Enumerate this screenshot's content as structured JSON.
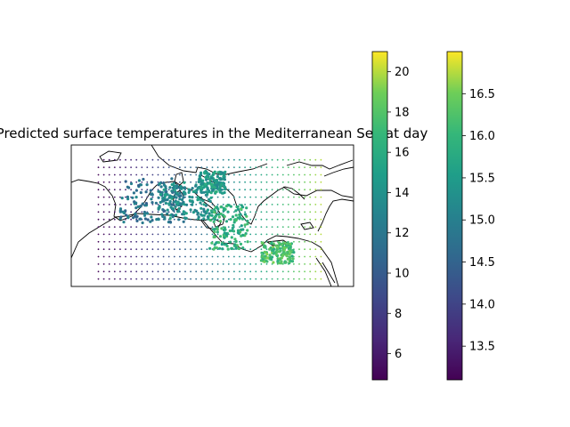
{
  "chart_data": {
    "type": "scatter",
    "title": "Predicted surface temperatures in the Mediterranean Sea at day",
    "xlabel": "",
    "ylabel": "",
    "map_region": "Mediterranean Sea",
    "colormap": "viridis",
    "colorbars": [
      {
        "name": "colorbar-1",
        "range": [
          4.7,
          21.0
        ],
        "ticks": [
          6,
          8,
          10,
          12,
          14,
          16,
          18,
          20
        ],
        "tick_labels": [
          "6",
          "8",
          "10",
          "12",
          "14",
          "16",
          "18",
          "20"
        ]
      },
      {
        "name": "colorbar-2",
        "range": [
          13.1,
          17.0
        ],
        "ticks": [
          13.5,
          14.0,
          14.5,
          15.0,
          15.5,
          16.0,
          16.5
        ],
        "tick_labels": [
          "13.5",
          "14.0",
          "14.5",
          "15.0",
          "15.5",
          "16.0",
          "16.5"
        ]
      }
    ],
    "grid_points": {
      "description": "regular grid of predicted values, coloured by colorbar-1",
      "lon_range": [
        -5,
        36
      ],
      "lat_range": [
        30,
        46
      ],
      "west_value": 5,
      "east_value": 20
    },
    "observations": {
      "description": "observation clusters over the sea, coloured by colorbar-2",
      "clusters": [
        {
          "region": "Balearic / Gulf of Lion",
          "lon": 5,
          "lat": 40.5,
          "value": 14.8
        },
        {
          "region": "Tyrrhenian",
          "lon": 11,
          "lat": 40.5,
          "value": 15.3
        },
        {
          "region": "Adriatic",
          "lon": 16,
          "lat": 43,
          "value": 15.5
        },
        {
          "region": "Ionian",
          "lon": 19,
          "lat": 37,
          "value": 15.9
        },
        {
          "region": "Levantine",
          "lon": 28,
          "lat": 33.5,
          "value": 16.2
        }
      ]
    }
  }
}
